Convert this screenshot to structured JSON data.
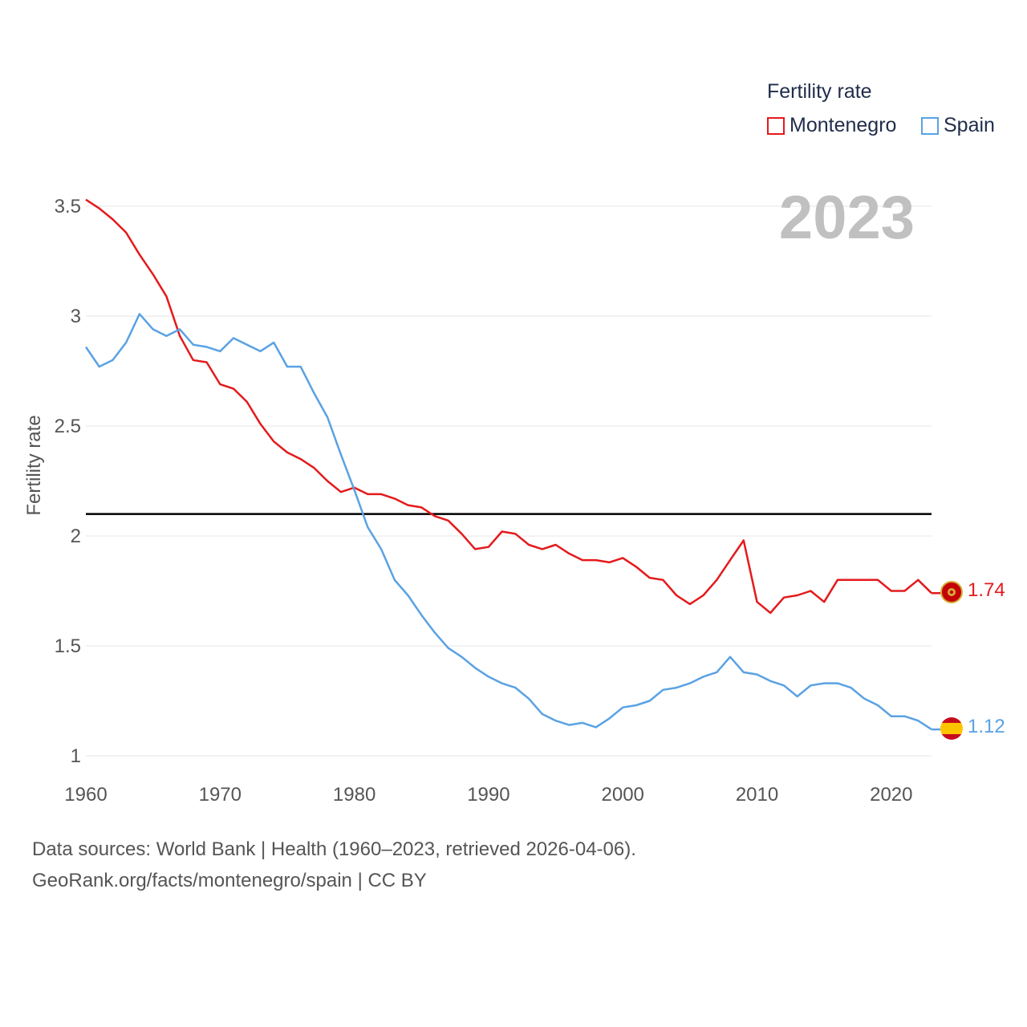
{
  "legend": {
    "title": "Fertility rate",
    "items": [
      {
        "name": "Montenegro",
        "color": "#e41a1c"
      },
      {
        "name": "Spain",
        "color": "#5aa2e3"
      }
    ]
  },
  "year_label": "2023",
  "footer": {
    "line1": "Data sources: World Bank | Health (1960–2023, retrieved 2026-04-06).",
    "line2": "GeoRank.org/facts/montenegro/spain | CC BY"
  },
  "end_labels": {
    "montenegro": "1.74",
    "spain": "1.12"
  },
  "chart_data": {
    "type": "line",
    "title": "",
    "xlabel": "",
    "ylabel": "Fertility rate",
    "xlim": [
      1960,
      2023
    ],
    "ylim": [
      1,
      3.6
    ],
    "yticks": [
      1,
      1.5,
      2,
      2.5,
      3,
      3.5
    ],
    "ytick_labels": [
      "1",
      "1.5",
      "2",
      "2.5",
      "3",
      "3.5"
    ],
    "xticks": [
      1960,
      1970,
      1980,
      1990,
      2000,
      2010,
      2020
    ],
    "xtick_labels": [
      "1960",
      "1970",
      "1980",
      "1990",
      "2000",
      "2010",
      "2020"
    ],
    "reference_line": 2.1,
    "grid": true,
    "legend_position": "top-right",
    "x_start": 1960,
    "series": [
      {
        "name": "Montenegro",
        "color": "#e41a1c",
        "values": [
          3.53,
          3.49,
          3.44,
          3.38,
          3.28,
          3.19,
          3.09,
          2.91,
          2.8,
          2.79,
          2.69,
          2.67,
          2.61,
          2.51,
          2.43,
          2.38,
          2.35,
          2.31,
          2.25,
          2.2,
          2.22,
          2.19,
          2.19,
          2.17,
          2.14,
          2.13,
          2.09,
          2.07,
          2.01,
          1.94,
          1.95,
          2.02,
          2.01,
          1.96,
          1.94,
          1.96,
          1.92,
          1.89,
          1.89,
          1.88,
          1.9,
          1.86,
          1.81,
          1.8,
          1.73,
          1.69,
          1.73,
          1.8,
          1.89,
          1.98,
          1.7,
          1.65,
          1.72,
          1.73,
          1.75,
          1.7,
          1.8,
          1.8,
          1.8,
          1.8,
          1.75,
          1.75,
          1.8,
          1.74
        ]
      },
      {
        "name": "Spain",
        "color": "#5aa2e3",
        "values": [
          2.86,
          2.77,
          2.8,
          2.88,
          3.01,
          2.94,
          2.91,
          2.94,
          2.87,
          2.86,
          2.84,
          2.9,
          2.87,
          2.84,
          2.88,
          2.77,
          2.77,
          2.65,
          2.54,
          2.37,
          2.21,
          2.04,
          1.94,
          1.8,
          1.73,
          1.64,
          1.56,
          1.49,
          1.45,
          1.4,
          1.36,
          1.33,
          1.31,
          1.26,
          1.19,
          1.16,
          1.14,
          1.15,
          1.13,
          1.17,
          1.22,
          1.23,
          1.25,
          1.3,
          1.31,
          1.33,
          1.36,
          1.38,
          1.45,
          1.38,
          1.37,
          1.34,
          1.32,
          1.27,
          1.32,
          1.33,
          1.33,
          1.31,
          1.26,
          1.23,
          1.18,
          1.18,
          1.16,
          1.12
        ]
      }
    ]
  }
}
